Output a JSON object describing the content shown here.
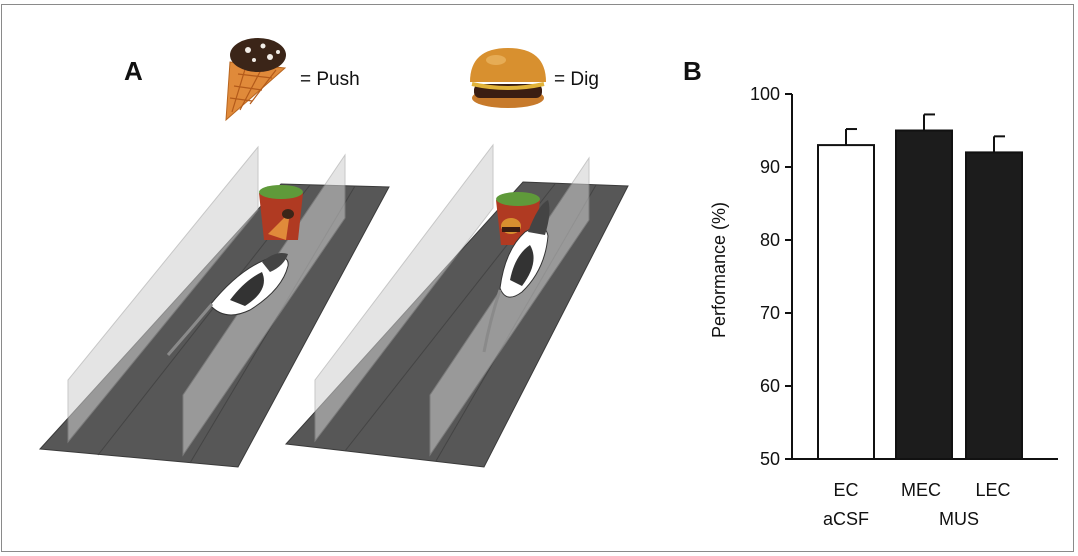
{
  "panels": {
    "a_label": "A",
    "b_label": "B"
  },
  "legend": {
    "push_text": "= Push",
    "dig_text": "= Dig"
  },
  "colors": {
    "track": "#575757",
    "track_edge": "#3a3a3a",
    "wall": "#c8c8c8",
    "aCSF_bar": "#ffffff",
    "MUS_bar": "#1c1c1c"
  },
  "chart_data": {
    "type": "bar",
    "categories": [
      "EC",
      "MEC",
      "LEC"
    ],
    "groups": [
      "aCSF",
      "MUS"
    ],
    "values": [
      93.0,
      95.0,
      92.0
    ],
    "errors": [
      2.2,
      2.2,
      2.2
    ],
    "ylabel": "Performance (%)",
    "ylim": [
      50,
      100
    ],
    "yticks": [
      50,
      60,
      70,
      80,
      90,
      100
    ],
    "grid": false
  }
}
